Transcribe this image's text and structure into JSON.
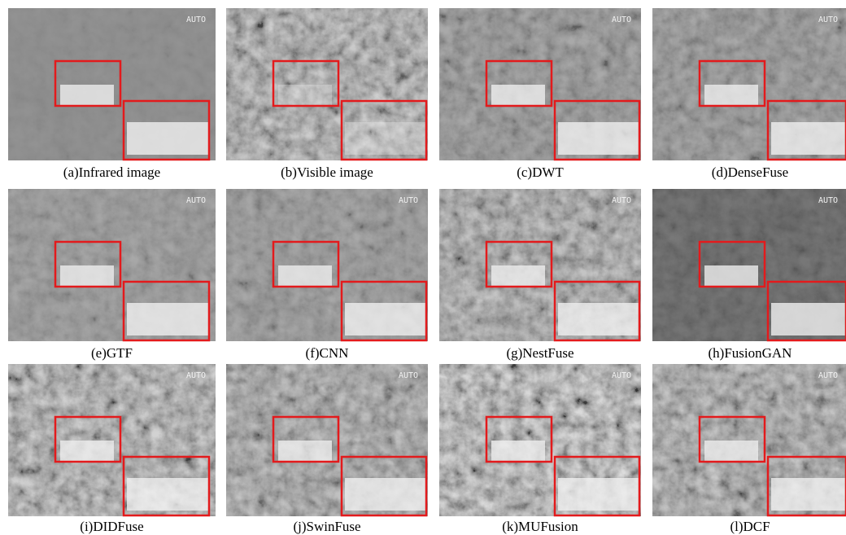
{
  "panels": [
    {
      "caption": "(a)Infrared image",
      "overlay": "AUTO"
    },
    {
      "caption": "(b)Visible image"
    },
    {
      "caption": "(c)DWT",
      "overlay": "AUTO"
    },
    {
      "caption": "(d)DenseFuse",
      "overlay": "AUTO"
    },
    {
      "caption": "(e)GTF",
      "overlay": "AUTO"
    },
    {
      "caption": "(f)CNN",
      "overlay": "AUTO"
    },
    {
      "caption": "(g)NestFuse",
      "overlay": "AUTO"
    },
    {
      "caption": "(h)FusionGAN",
      "overlay": "AUTO"
    },
    {
      "caption": "(i)DIDFuse",
      "overlay": "AUTO"
    },
    {
      "caption": "(j)SwinFuse",
      "overlay": "AUTO"
    },
    {
      "caption": "(k)MUFusion",
      "overlay": "AUTO"
    },
    {
      "caption": "(l)DCF",
      "overlay": "AUTO"
    }
  ]
}
